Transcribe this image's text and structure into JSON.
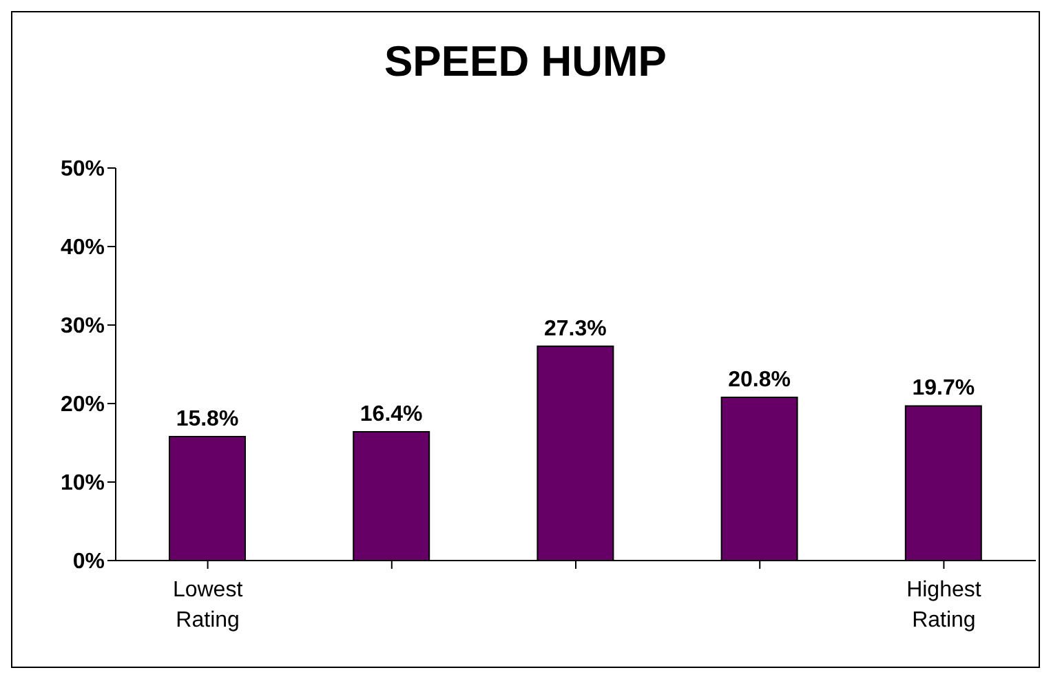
{
  "chart_data": {
    "type": "bar",
    "title": "SPEED HUMP",
    "categories": [
      "Lowest Rating",
      null,
      null,
      null,
      "Highest Rating"
    ],
    "values": [
      15.8,
      16.4,
      27.3,
      20.8,
      19.7
    ],
    "value_labels": [
      "15.8%",
      "16.4%",
      "27.3%",
      "20.8%",
      "19.7%"
    ],
    "color": "#660066",
    "ylim": [
      0,
      50
    ],
    "yticks": [
      {
        "value": 0,
        "label": "0%"
      },
      {
        "value": 10,
        "label": "10%"
      },
      {
        "value": 20,
        "label": "20%"
      },
      {
        "value": 30,
        "label": "30%"
      },
      {
        "value": 40,
        "label": "40%"
      },
      {
        "value": 50,
        "label": "50%"
      }
    ],
    "grid": false,
    "legend": false
  }
}
